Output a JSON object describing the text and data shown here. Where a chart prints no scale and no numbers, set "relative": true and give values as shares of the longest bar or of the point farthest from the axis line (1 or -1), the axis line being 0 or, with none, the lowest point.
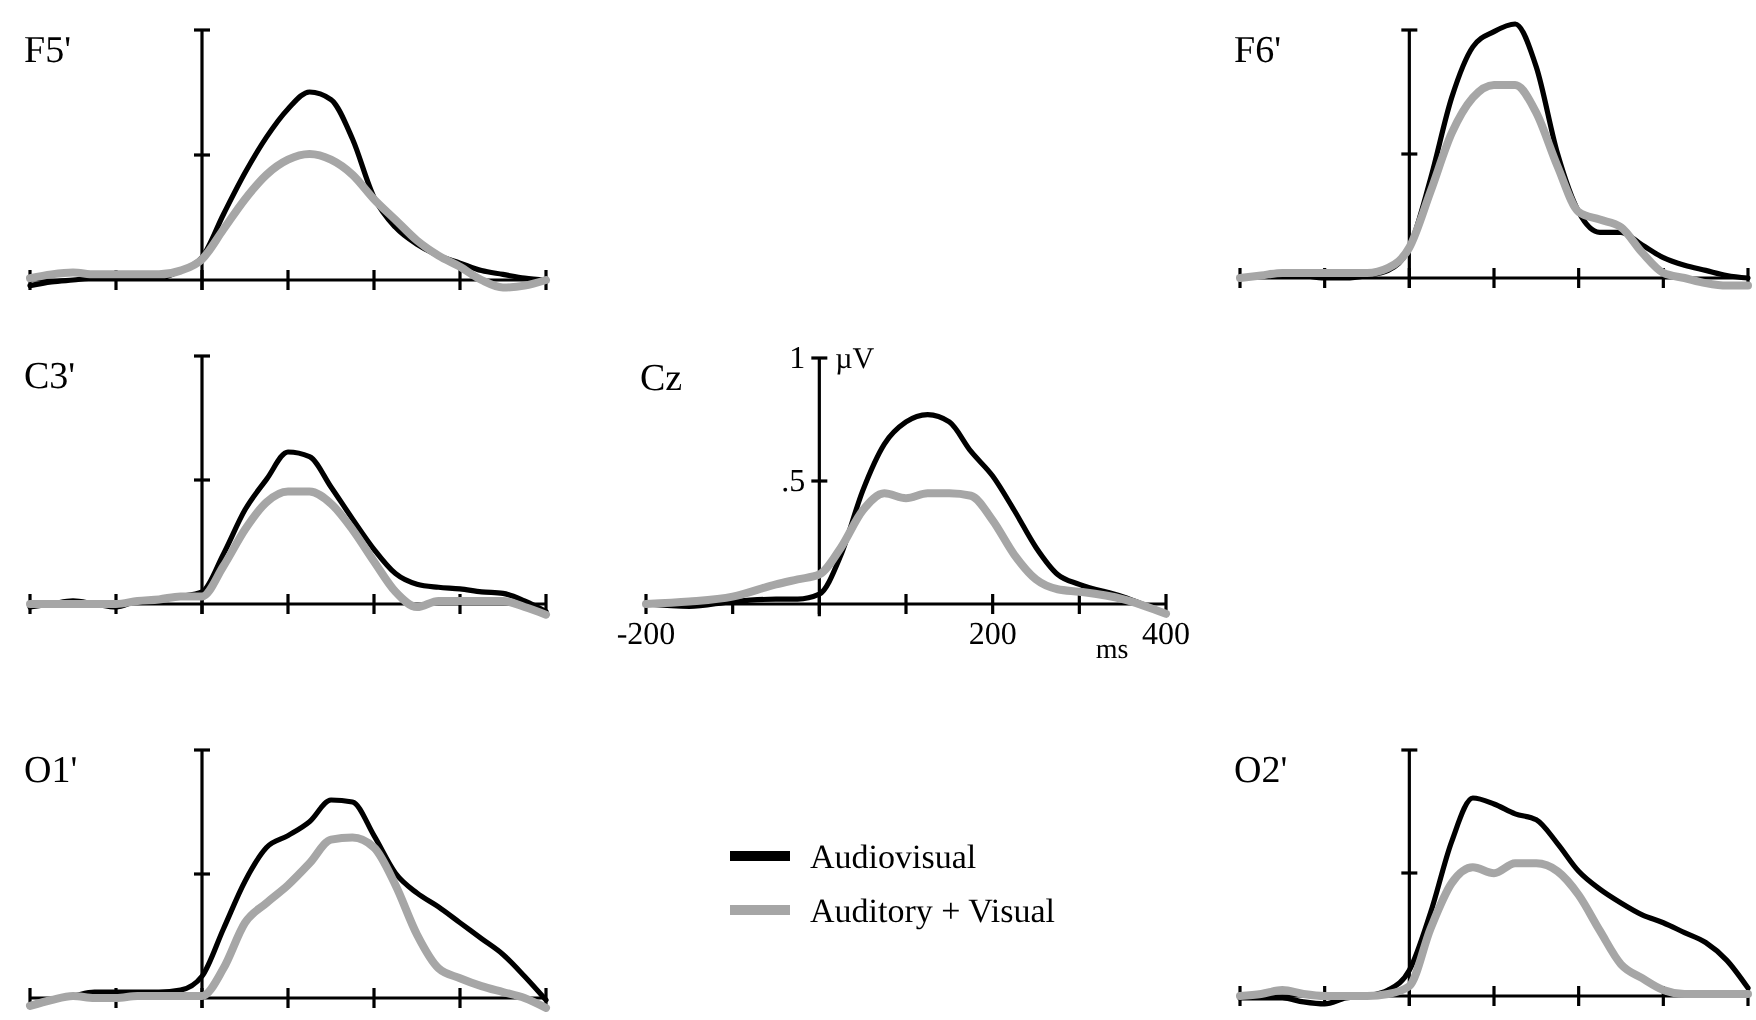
{
  "chart_data": [
    {
      "type": "line",
      "title": "F5'",
      "relative": true,
      "categories": [
        null,
        null,
        null,
        null,
        null,
        null,
        null,
        null,
        null,
        null,
        null,
        null,
        null,
        null,
        null,
        null,
        null,
        null,
        null,
        null,
        null,
        null,
        null,
        null,
        null
      ],
      "series": [
        {
          "color": "#000000",
          "values": [
            -0.03,
            -0.01,
            0,
            0.01,
            0.01,
            0.01,
            0.01,
            0.05,
            0.12,
            0.35,
            0.57,
            0.76,
            0.91,
            1,
            0.96,
            0.75,
            0.44,
            0.28,
            0.19,
            0.13,
            0.09,
            0.05,
            0.03,
            0.01,
            0
          ]
        },
        {
          "color": "#a6a6a6",
          "values": [
            0.01,
            0.03,
            0.04,
            0.03,
            0.03,
            0.03,
            0.03,
            0.05,
            0.11,
            0.27,
            0.43,
            0.56,
            0.64,
            0.67,
            0.64,
            0.56,
            0.43,
            0.32,
            0.21,
            0.13,
            0.07,
            0,
            -0.04,
            -0.03,
            0
          ]
        }
      ]
    },
    {
      "type": "line",
      "title": "F6'",
      "relative": true,
      "categories": [
        null,
        null,
        null,
        null,
        null,
        null,
        null,
        null,
        null,
        null,
        null,
        null,
        null,
        null,
        null,
        null,
        null,
        null,
        null,
        null,
        null,
        null,
        null,
        null,
        null
      ],
      "series": [
        {
          "color": "#000000",
          "values": [
            0,
            0.01,
            0.02,
            0.01,
            0,
            0,
            0.01,
            0.03,
            0.12,
            0.39,
            0.71,
            0.91,
            0.97,
            1,
            0.83,
            0.49,
            0.26,
            0.18,
            0.18,
            0.13,
            0.08,
            0.05,
            0.03,
            0.01,
            0
          ]
        },
        {
          "color": "#a6a6a6",
          "values": [
            0,
            0.01,
            0.02,
            0.02,
            0.02,
            0.02,
            0.02,
            0.04,
            0.12,
            0.34,
            0.57,
            0.71,
            0.76,
            0.76,
            0.65,
            0.44,
            0.26,
            0.23,
            0.2,
            0.1,
            0.02,
            0,
            -0.02,
            -0.03,
            -0.03
          ]
        }
      ]
    },
    {
      "type": "line",
      "title": "C3'",
      "relative": true,
      "categories": [
        null,
        null,
        null,
        null,
        null,
        null,
        null,
        null,
        null,
        null,
        null,
        null,
        null,
        null,
        null,
        null,
        null,
        null,
        null,
        null,
        null,
        null,
        null,
        null,
        null
      ],
      "series": [
        {
          "color": "#000000",
          "values": [
            -0.02,
            0,
            0.02,
            0,
            -0.02,
            0.02,
            0.03,
            0.05,
            0.08,
            0.33,
            0.62,
            0.82,
            1,
            0.97,
            0.77,
            0.56,
            0.36,
            0.2,
            0.13,
            0.11,
            0.1,
            0.08,
            0.07,
            0.02,
            -0.05
          ]
        },
        {
          "color": "#a6a6a6",
          "values": [
            0,
            0,
            0,
            0,
            0,
            0.02,
            0.03,
            0.05,
            0.05,
            0.25,
            0.49,
            0.67,
            0.74,
            0.74,
            0.66,
            0.49,
            0.28,
            0.08,
            -0.02,
            0.02,
            0.02,
            0.02,
            0.02,
            -0.02,
            -0.07
          ]
        }
      ]
    },
    {
      "type": "line",
      "title": "Cz",
      "xlabel": "ms",
      "ylabel": "µV",
      "legend": "bottom",
      "x": [
        -200,
        -150,
        -100,
        -50,
        -25,
        0,
        25,
        50,
        75,
        100,
        125,
        150,
        175,
        200,
        225,
        250,
        275,
        300,
        350,
        400
      ],
      "xlim": [
        -200,
        400
      ],
      "ylim": [
        -0.05,
        1
      ],
      "xticks": [
        {
          "value": -200,
          "label": "-200"
        },
        {
          "value": -100,
          "label": null
        },
        {
          "value": 0,
          "label": null
        },
        {
          "value": 100,
          "label": null
        },
        {
          "value": 200,
          "label": "200"
        },
        {
          "value": 300,
          "label": null
        },
        {
          "value": 400,
          "label": "400"
        }
      ],
      "yticks": [
        {
          "value": 0.5,
          "label": ".5"
        },
        1
      ],
      "series": [
        {
          "name": "Audiovisual",
          "color": "#000000",
          "values": [
            0,
            -0.01,
            0.01,
            0.02,
            0.02,
            0.04,
            0.2,
            0.46,
            0.65,
            0.74,
            0.77,
            0.74,
            0.62,
            0.52,
            0.38,
            0.23,
            0.12,
            0.08,
            0.03,
            -0.04
          ]
        },
        {
          "name": "Auditory + Visual",
          "color": "#a6a6a6",
          "values": [
            0,
            0.01,
            0.03,
            0.08,
            0.1,
            0.12,
            0.23,
            0.38,
            0.45,
            0.43,
            0.45,
            0.45,
            0.44,
            0.34,
            0.2,
            0.1,
            0.06,
            0.05,
            0.02,
            -0.04
          ]
        }
      ]
    },
    {
      "type": "line",
      "title": "O1'",
      "relative": true,
      "categories": [
        null,
        null,
        null,
        null,
        null,
        null,
        null,
        null,
        null,
        null,
        null,
        null,
        null,
        null,
        null,
        null,
        null,
        null,
        null,
        null,
        null,
        null,
        null,
        null,
        null
      ],
      "series": [
        {
          "color": "#000000",
          "values": [
            -0.04,
            -0.01,
            0.01,
            0.03,
            0.03,
            0.03,
            0.03,
            0.04,
            0.11,
            0.35,
            0.59,
            0.76,
            0.82,
            0.89,
            1,
            0.99,
            0.82,
            0.63,
            0.53,
            0.46,
            0.38,
            0.3,
            0.22,
            0.11,
            -0.01
          ]
        },
        {
          "color": "#a6a6a6",
          "values": [
            -0.04,
            -0.01,
            0.01,
            0,
            0,
            0.01,
            0.01,
            0.01,
            0.01,
            0.15,
            0.38,
            0.48,
            0.57,
            0.68,
            0.8,
            0.81,
            0.76,
            0.57,
            0.32,
            0.15,
            0.1,
            0.06,
            0.03,
            0,
            -0.05
          ]
        }
      ]
    },
    {
      "type": "line",
      "title": "O2'",
      "relative": true,
      "categories": [
        null,
        null,
        null,
        null,
        null,
        null,
        null,
        null,
        null,
        null,
        null,
        null,
        null,
        null,
        null,
        null,
        null,
        null,
        null,
        null,
        null,
        null,
        null,
        null,
        null
      ],
      "series": [
        {
          "color": "#000000",
          "values": [
            -0.01,
            -0.01,
            -0.01,
            -0.03,
            -0.04,
            -0.01,
            0,
            0.03,
            0.13,
            0.42,
            0.78,
            1,
            0.97,
            0.92,
            0.89,
            0.77,
            0.63,
            0.54,
            0.47,
            0.41,
            0.37,
            0.32,
            0.27,
            0.18,
            0.04
          ]
        },
        {
          "color": "#a6a6a6",
          "values": [
            0,
            0.01,
            0.03,
            0.01,
            0,
            0,
            0,
            0.01,
            0.05,
            0.34,
            0.57,
            0.65,
            0.62,
            0.67,
            0.67,
            0.63,
            0.51,
            0.33,
            0.16,
            0.09,
            0.03,
            0.01,
            0.01,
            0.01,
            0.01
          ]
        }
      ]
    }
  ]
}
